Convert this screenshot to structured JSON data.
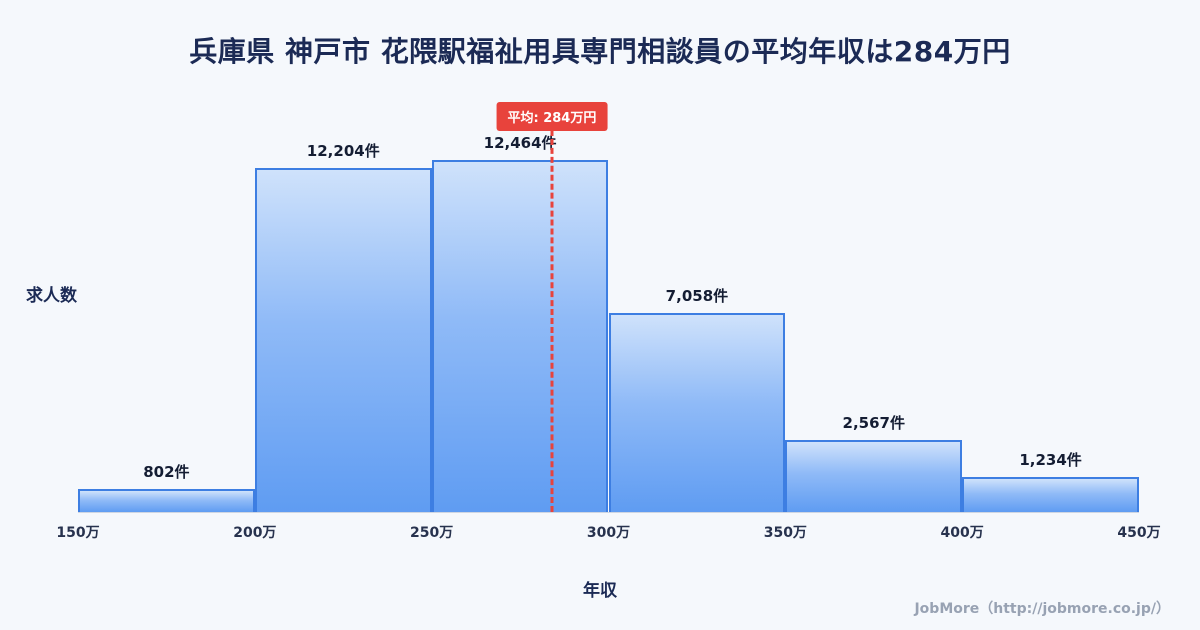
{
  "title": "兵庫県 神戸市 花隈駅福祉用具専門相談員の平均年収は284万円",
  "y_axis_label": "求人数",
  "x_axis_label": "年収",
  "average_badge": "平均: 284万円",
  "footer": "JobMore（http://jobmore.co.jp/）",
  "colors": {
    "background": "#f5f8fc",
    "bar_gradient_top": "#cfe2fb",
    "bar_gradient_bottom": "#5f9cf2",
    "bar_border": "#3d7ee2",
    "average_red": "#e8433c",
    "title_navy": "#1b2a55"
  },
  "chart_data": {
    "type": "bar",
    "title": "兵庫県 神戸市 花隈駅福祉用具専門相談員の平均年収は284万円",
    "categories": [
      "150万-200万",
      "200万-250万",
      "250万-300万",
      "300万-350万",
      "350万-400万",
      "400万-450万"
    ],
    "values": [
      802,
      12204,
      12464,
      7058,
      2567,
      1234
    ],
    "value_labels": [
      "802件",
      "12,204件",
      "12,464件",
      "7,058件",
      "2,567件",
      "1,234件"
    ],
    "x_ticks": [
      "150万",
      "200万",
      "250万",
      "300万",
      "350万",
      "400万",
      "450万"
    ],
    "x_range": [
      150,
      450
    ],
    "average": 284,
    "average_label": "平均: 284万円",
    "xlabel": "年収",
    "ylabel": "求人数",
    "ylim": [
      0,
      14600
    ],
    "grid": false,
    "legend": false
  }
}
